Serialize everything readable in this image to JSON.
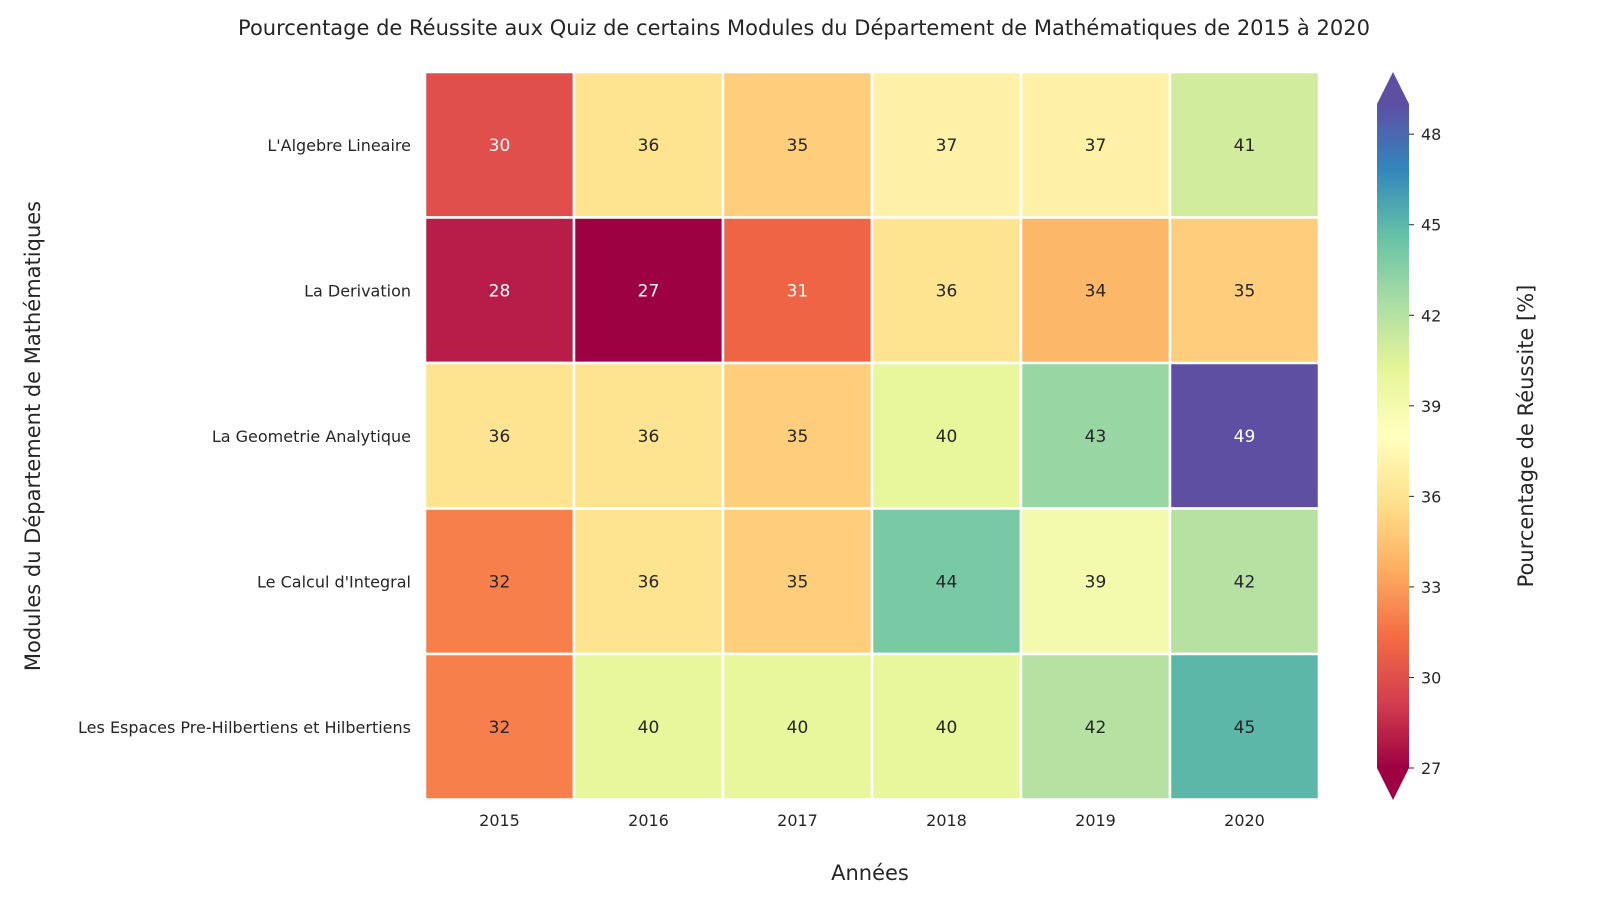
{
  "chart_data": {
    "type": "heatmap",
    "title": "Pourcentage de Réussite aux Quiz de certains Modules du Département de Mathématiques de 2015 à 2020",
    "xlabel": "Années",
    "ylabel": "Modules du Département de Mathématiques",
    "x_categories": [
      "2015",
      "2016",
      "2017",
      "2018",
      "2019",
      "2020"
    ],
    "y_categories": [
      "L'Algebre Lineaire",
      "La Derivation",
      "La Geometrie Analytique",
      "Le Calcul d'Integral",
      "Les Espaces Pre-Hilbertiens et Hilbertiens"
    ],
    "values": [
      [
        30,
        36,
        35,
        37,
        37,
        41
      ],
      [
        28,
        27,
        31,
        36,
        34,
        35
      ],
      [
        36,
        36,
        35,
        40,
        43,
        49
      ],
      [
        32,
        36,
        35,
        44,
        39,
        42
      ],
      [
        32,
        40,
        40,
        40,
        42,
        45
      ]
    ],
    "colorbar": {
      "label": "Pourcentage de Réussite [%]",
      "vmin": 27,
      "vmax": 49,
      "ticks": [
        27,
        30,
        33,
        36,
        39,
        42,
        45,
        48
      ],
      "colormap": "Spectral",
      "extend": "both"
    },
    "colors": {
      "spectral": [
        "#9e0142",
        "#d53e4f",
        "#f46d43",
        "#fdae61",
        "#fee08b",
        "#ffffbf",
        "#e6f598",
        "#abdda4",
        "#66c2a5",
        "#3288bd",
        "#5e4fa2"
      ],
      "text_dark": "#262626",
      "text_light": "#ffffff",
      "cell_border": "#ffffff"
    }
  }
}
